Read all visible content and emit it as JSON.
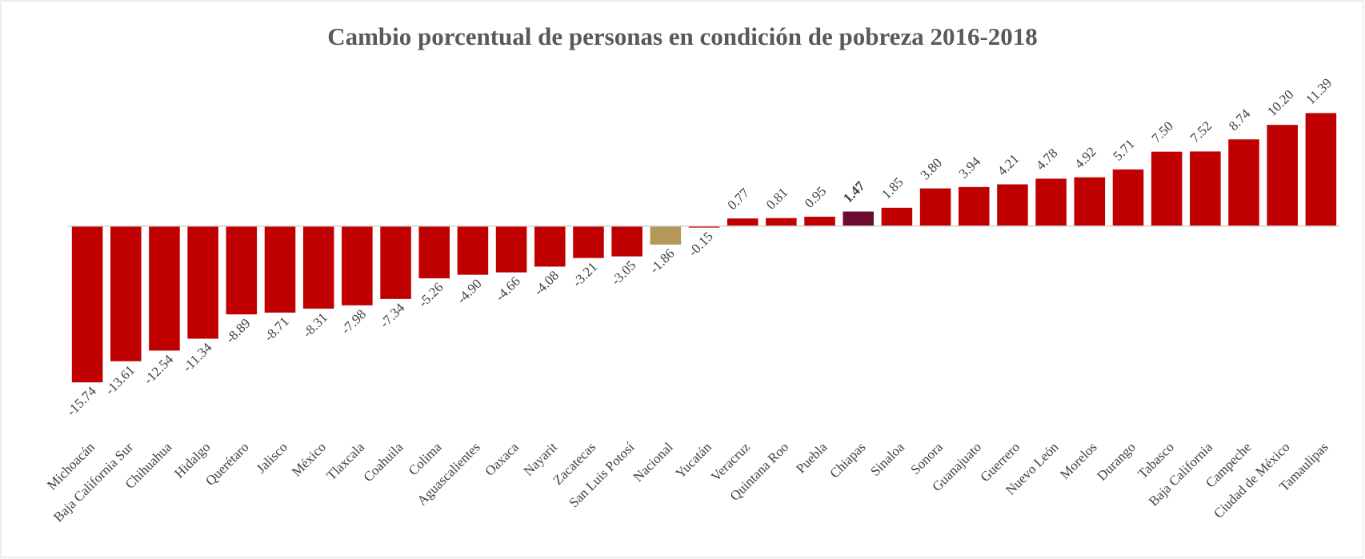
{
  "chart_data": {
    "type": "bar",
    "title": "Cambio porcentual de personas en condición de pobreza 2016-2018",
    "categories": [
      "Michoacán",
      "Baja California Sur",
      "Chihuahua",
      "Hidalgo",
      "Querétaro",
      "Jalisco",
      "México",
      "Tlaxcala",
      "Coahuila",
      "Colima",
      "Aguascalientes",
      "Oaxaca",
      "Nayarit",
      "Zacatecas",
      "San Luis Potosí",
      "Nacional",
      "Yucatán",
      "Veracruz",
      "Quintana Roo",
      "Puebla",
      "Chiapas",
      "Sinaloa",
      "Sonora",
      "Guanajuato",
      "Guerrero",
      "Nuevo León",
      "Morelos",
      "Durango",
      "Tabasco",
      "Baja California",
      "Campeche",
      "Ciudad de México",
      "Tamaulipas"
    ],
    "values": [
      -15.74,
      -13.61,
      -12.54,
      -11.34,
      -8.89,
      -8.71,
      -8.31,
      -7.98,
      -7.34,
      -5.26,
      -4.9,
      -4.66,
      -4.08,
      -3.21,
      -3.05,
      -1.86,
      -0.15,
      0.77,
      0.81,
      0.95,
      1.47,
      1.85,
      3.8,
      3.94,
      4.21,
      4.78,
      4.92,
      5.71,
      7.5,
      7.52,
      8.74,
      10.2,
      11.39
    ],
    "value_labels": [
      "-15.74",
      "-13.61",
      "-12.54",
      "-11.34",
      "-8.89",
      "-8.71",
      "-8.31",
      "-7.98",
      "-7.34",
      "-5.26",
      "-4.90",
      "-4.66",
      "-4.08",
      "-3.21",
      "-3.05",
      "-1.86",
      "-0.15",
      "0.77",
      "0.81",
      "0.95",
      "1.47",
      "1.85",
      "3.80",
      "3.94",
      "4.21",
      "4.78",
      "4.92",
      "5.71",
      "7.50",
      "7.52",
      "8.74",
      "10.20",
      "11.39"
    ],
    "colors": [
      "#c00000",
      "#c00000",
      "#c00000",
      "#c00000",
      "#c00000",
      "#c00000",
      "#c00000",
      "#c00000",
      "#c00000",
      "#c00000",
      "#c00000",
      "#c00000",
      "#c00000",
      "#c00000",
      "#c00000",
      "#b3985a",
      "#c00000",
      "#c00000",
      "#c00000",
      "#c00000",
      "#6b0d30",
      "#c00000",
      "#c00000",
      "#c00000",
      "#c00000",
      "#c00000",
      "#c00000",
      "#c00000",
      "#c00000",
      "#c00000",
      "#c00000",
      "#c00000",
      "#c00000"
    ],
    "bold_labels": [
      20
    ],
    "ylim": [
      -20,
      14
    ]
  }
}
